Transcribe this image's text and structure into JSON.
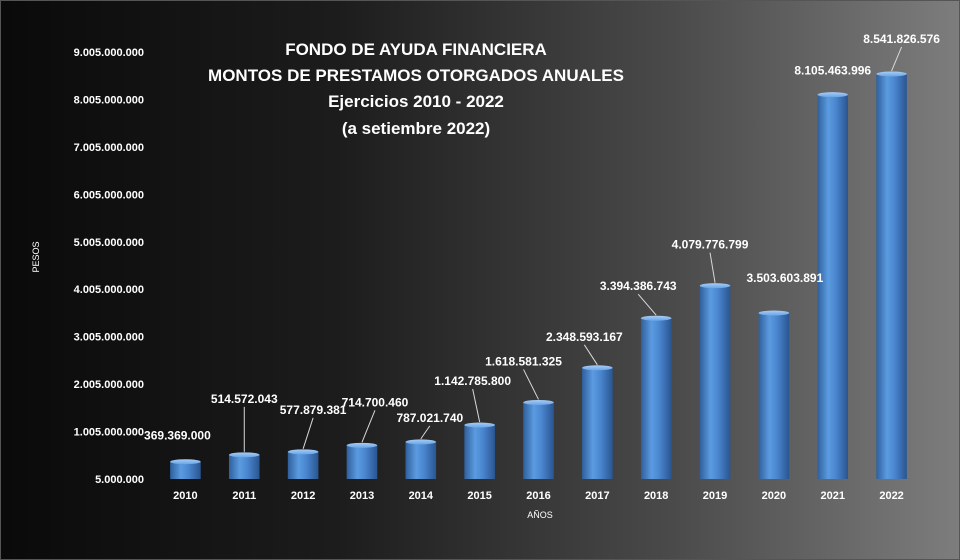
{
  "chart_data": {
    "type": "bar",
    "title_lines": [
      "FONDO DE AYUDA FINANCIERA",
      "MONTOS  DE  PRESTAMOS  OTORGADOS  ANUALES",
      "Ejercicios  2010 - 2022",
      "(a  setiembre 2022)"
    ],
    "xlabel": "AÑOS",
    "ylabel": "PESOS",
    "categories": [
      "2010",
      "2011",
      "2012",
      "2013",
      "2014",
      "2015",
      "2016",
      "2017",
      "2018",
      "2019",
      "2020",
      "2021",
      "2022"
    ],
    "values": [
      369369000,
      514572043,
      577879381,
      714700460,
      787021740,
      1142785800,
      1618581325,
      2348593167,
      3394386743,
      4079776799,
      3503603891,
      8105463996,
      8541826576
    ],
    "value_labels": [
      "369.369.000",
      "514.572.043",
      "577.879.381",
      "714.700.460",
      "787.021.740",
      "1.142.785.800",
      "1.618.581.325",
      "2.348.593.167",
      "3.394.386.743",
      "4.079.776.799",
      "3.503.603.891",
      "8.105.463.996",
      "8.541.826.576"
    ],
    "y_ticks": [
      5000000,
      1005000000,
      2005000000,
      3005000000,
      4005000000,
      5005000000,
      6005000000,
      7005000000,
      8005000000,
      9005000000
    ],
    "y_tick_labels": [
      "5.000.000",
      "1.005.000.000",
      "2.005.000.000",
      "3.005.000.000",
      "4.005.000.000",
      "5.005.000.000",
      "6.005.000.000",
      "7.005.000.000",
      "8.005.000.000",
      "9.005.000.000"
    ],
    "ylim": [
      5000000,
      9005000000
    ],
    "grid": false,
    "legend": "none",
    "bar_color": "#4a86cf"
  }
}
